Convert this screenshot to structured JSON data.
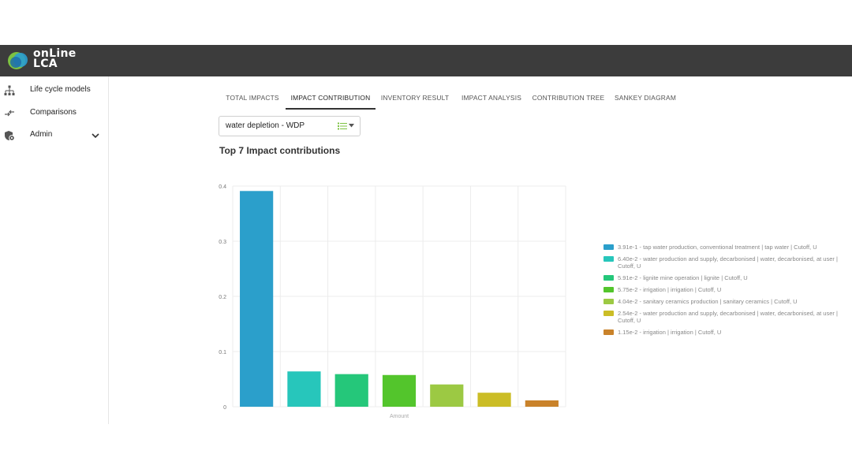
{
  "app": {
    "logo_line1": "onLine",
    "logo_line2": "LCA",
    "logo_colors": [
      "#2a9fd1",
      "#7cc242",
      "#1f6fa8"
    ]
  },
  "sidebar": {
    "items": [
      {
        "label": "Life cycle models",
        "icon": "hierarchy-icon"
      },
      {
        "label": "Comparisons",
        "icon": "compare-arrows-icon"
      },
      {
        "label": "Admin",
        "icon": "admin-settings-icon",
        "expandable": true
      }
    ]
  },
  "tabs": [
    {
      "label": "TOTAL IMPACTS",
      "active": false
    },
    {
      "label": "IMPACT CONTRIBUTION",
      "active": true
    },
    {
      "label": "INVENTORY RESULT",
      "active": false
    },
    {
      "label": "IMPACT ANALYSIS",
      "active": false
    },
    {
      "label": "CONTRIBUTION TREE",
      "active": false
    },
    {
      "label": "SANKEY DIAGRAM",
      "active": false
    }
  ],
  "selector": {
    "value": "water depletion - WDP",
    "icon": "list-icon",
    "icon_color": "#7cc242"
  },
  "chart_title": "Top 7 Impact contributions",
  "chart_data": {
    "type": "bar",
    "title": "Top 7 Impact contributions",
    "xlabel": "Amount",
    "ylabel": "",
    "ylim": [
      0,
      0.4
    ],
    "yticks": [
      "0",
      "0.1",
      "0.2",
      "0.3",
      "0.4"
    ],
    "grid": true,
    "legend_position": "right",
    "series": [
      {
        "name": "3.91e-1 - tap water production, conventional treatment | tap water | Cutoff, U",
        "value": 0.391,
        "color": "#2b9fcb"
      },
      {
        "name": "6.40e-2 - water production and supply, decarbonised | water, decarbonised, at user | Cutoff, U",
        "value": 0.064,
        "color": "#27c6bb"
      },
      {
        "name": "5.91e-2 - lignite mine operation | lignite | Cutoff, U",
        "value": 0.0591,
        "color": "#25c77a"
      },
      {
        "name": "5.75e-2 - irrigation | irrigation | Cutoff, U",
        "value": 0.0575,
        "color": "#53c52c"
      },
      {
        "name": "4.04e-2 - sanitary ceramics production | sanitary ceramics | Cutoff, U",
        "value": 0.0404,
        "color": "#9cc943"
      },
      {
        "name": "2.54e-2 - water production and supply, decarbonised | water, decarbonised, at user | Cutoff, U",
        "value": 0.0254,
        "color": "#cbbd26"
      },
      {
        "name": "1.15e-2 - irrigation | irrigation | Cutoff, U",
        "value": 0.0115,
        "color": "#c9822a"
      }
    ]
  }
}
